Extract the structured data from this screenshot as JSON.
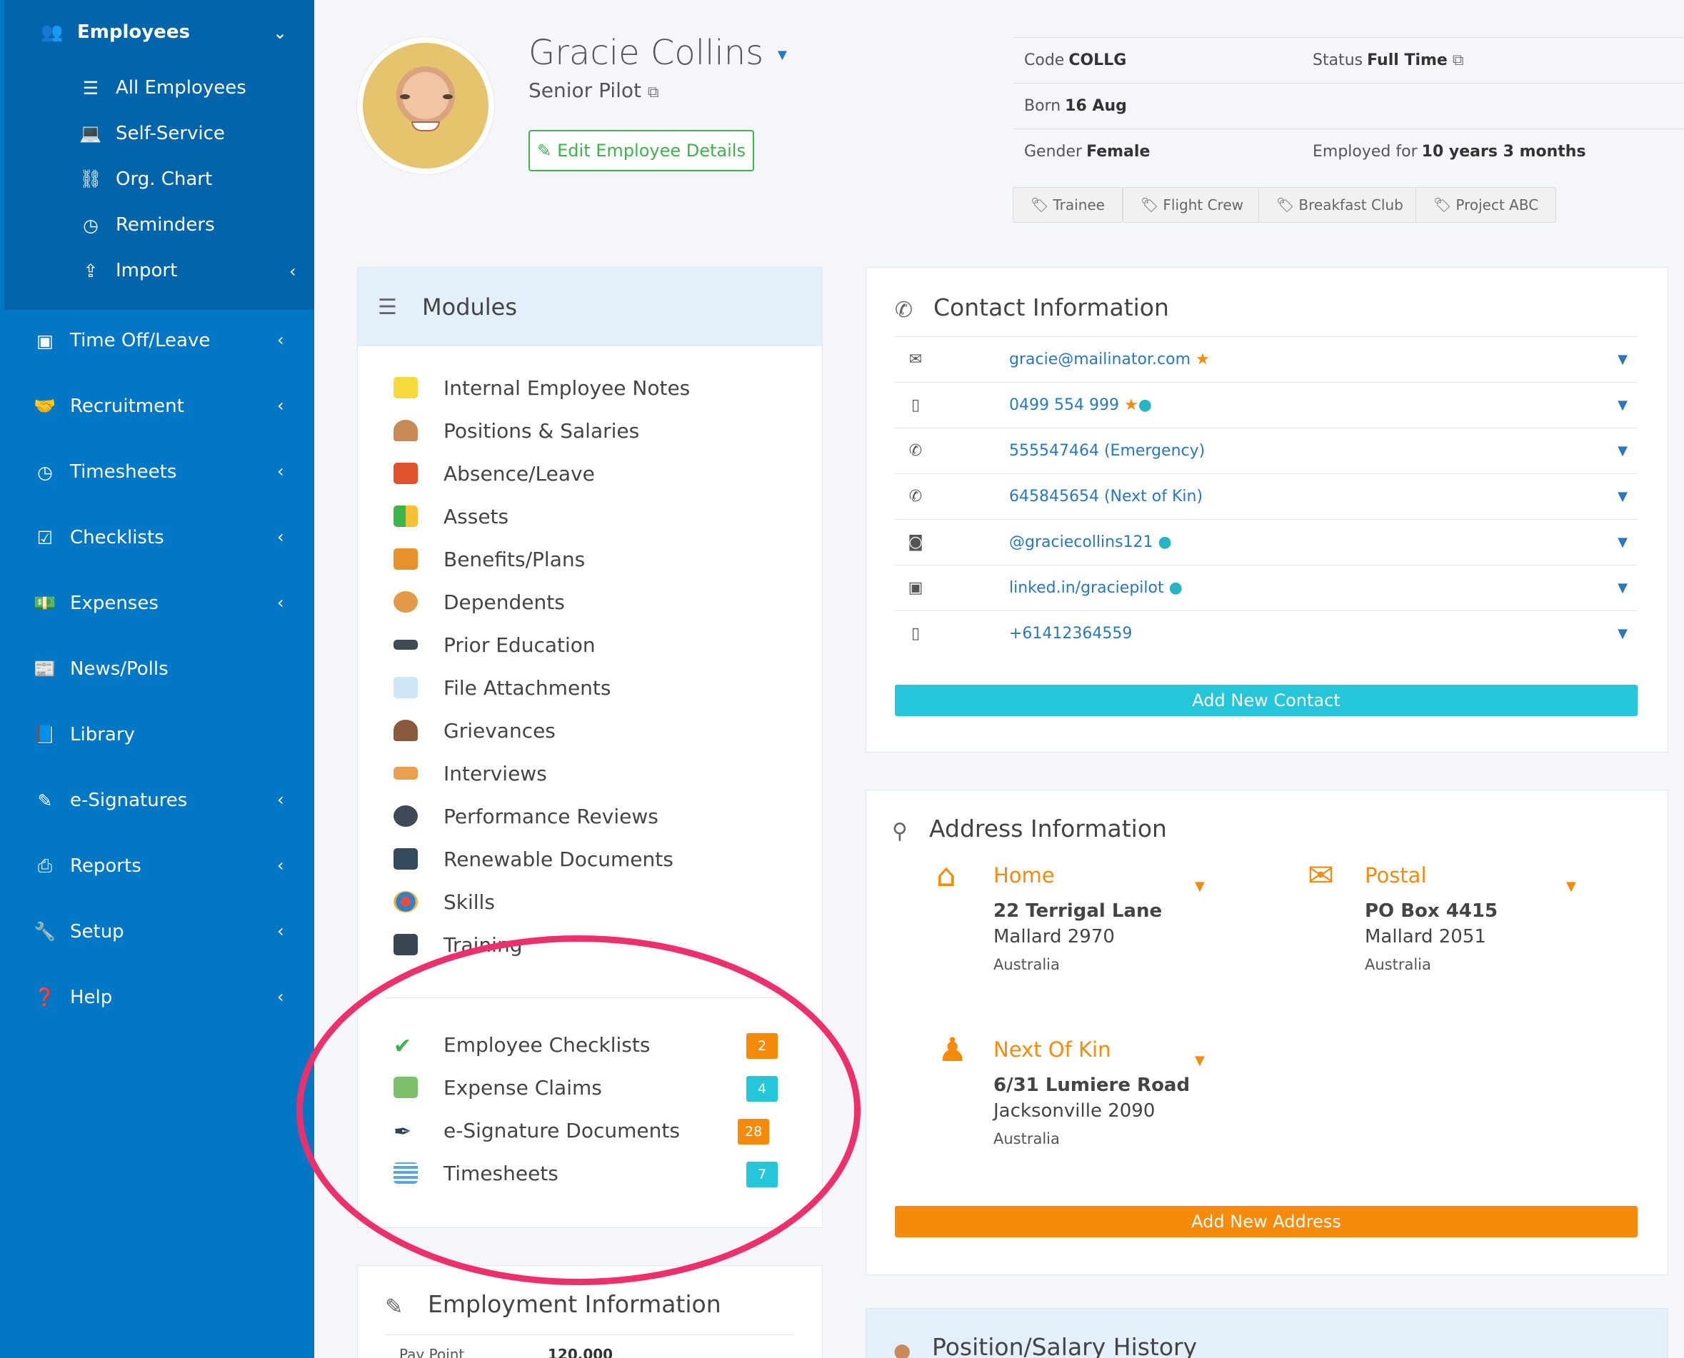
{
  "sidebar": {
    "employees": "Employees",
    "sub": [
      "All Employees",
      "Self-Service",
      "Org. Chart",
      "Reminders",
      "Import"
    ],
    "items": [
      "Time Off/Leave",
      "Recruitment",
      "Timesheets",
      "Checklists",
      "Expenses",
      "News/Polls",
      "Library",
      "e-Signatures",
      "Reports",
      "Setup",
      "Help"
    ]
  },
  "profile": {
    "name": "Gracie Collins",
    "title": "Senior Pilot",
    "edit_label": "Edit Employee Details",
    "code_label": "Code",
    "code_value": "COLLG",
    "status_label": "Status",
    "status_value": "Full Time",
    "born_label": "Born",
    "born_value": "16 Aug",
    "gender_label": "Gender",
    "gender_value": "Female",
    "employed_label": "Employed for",
    "employed_value": "10 years 3 months",
    "tags": [
      "Trainee",
      "Flight Crew",
      "Breakfast Club",
      "Project ABC"
    ]
  },
  "modules": {
    "title": "Modules",
    "items": [
      "Internal Employee Notes",
      "Positions & Salaries",
      "Absence/Leave",
      "Assets",
      "Benefits/Plans",
      "Dependents",
      "Prior Education",
      "File Attachments",
      "Grievances",
      "Interviews",
      "Performance Reviews",
      "Renewable Documents",
      "Skills",
      "Training"
    ],
    "counted": [
      {
        "label": "Employee Checklists",
        "count": "2"
      },
      {
        "label": "Expense Claims",
        "count": "4"
      },
      {
        "label": "e-Signature Documents",
        "count": "28"
      },
      {
        "label": "Timesheets",
        "count": "7"
      }
    ]
  },
  "employment": {
    "title": "Employment Information",
    "pay_point_label": "Pay Point",
    "pay_point_value": "120,000"
  },
  "contact": {
    "title": "Contact Information",
    "rows": [
      "gracie@mailinator.com",
      "0499 554 999",
      "555547464 (Emergency)",
      "645845654 (Next of Kin)",
      "@graciecollins121",
      "linked.in/graciepilot",
      "+61412364559"
    ],
    "add_label": "Add New Contact"
  },
  "address": {
    "title": "Address Information",
    "home": {
      "label": "Home",
      "line1": "22 Terrigal Lane",
      "line2": "Mallard 2970",
      "country": "Australia"
    },
    "postal": {
      "label": "Postal",
      "line1": "PO Box 4415",
      "line2": "Mallard 2051",
      "country": "Australia"
    },
    "kin": {
      "label": "Next Of Kin",
      "line1": "6/31 Lumiere Road",
      "line2": "Jacksonville 2090",
      "country": "Australia"
    },
    "add_label": "Add New Address"
  },
  "position_history": {
    "title": "Position/Salary History"
  },
  "colors": {
    "sidebar": "#0277c6",
    "accent_green": "#3ab54a",
    "accent_cyan": "#26c6da",
    "accent_orange": "#f58a0b",
    "annotation": "#ef2f6b"
  }
}
